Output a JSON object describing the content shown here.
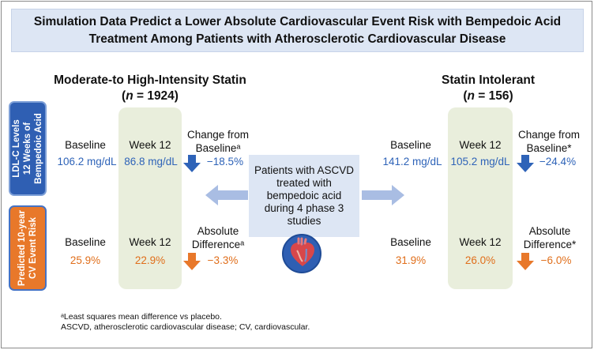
{
  "title": {
    "line1": "Simulation Data Predict a Lower Absolute Cardiovascular Event Risk with Bempedoic Acid",
    "line2": "Treatment Among Patients with Atherosclerotic Cardiovascular Disease"
  },
  "left_group": {
    "title": "Moderate-to High-Intensity Statin",
    "n_prefix": "(",
    "n_label": "n",
    "n_value": " = 1924)"
  },
  "right_group": {
    "title": "Statin Intolerant",
    "n_prefix": "(",
    "n_label": "n",
    "n_value": " = 156)"
  },
  "side_labels": {
    "ldl_line1": "LDL-C Levels",
    "ldl_line2": "12 Weeks of",
    "ldl_line3": "Bempedoic Acid",
    "cv_line1": "Predicted 10-year",
    "cv_line2": "CV Event Risk"
  },
  "labels": {
    "baseline": "Baseline",
    "week12": "Week 12",
    "change_line1": "Change from",
    "change_line2_left": "Baselineᵃ",
    "change_line2_right": "Baseline*",
    "absdiff_line1": "Absolute",
    "absdiff_line2_left": "Differenceᵃ",
    "absdiff_line2_right": "Difference*"
  },
  "left_ldl": {
    "baseline": "106.2 mg/dL",
    "week12": "86.8 mg/dL",
    "change": "−18.5%"
  },
  "left_cv": {
    "baseline": "25.9%",
    "week12": "22.9%",
    "change": "−3.3%"
  },
  "right_ldl": {
    "baseline": "141.2 mg/dL",
    "week12": "105.2 mg/dL",
    "change": "−24.4%"
  },
  "right_cv": {
    "baseline": "31.9%",
    "week12": "26.0%",
    "change": "−6.0%"
  },
  "center": {
    "line1": "Patients with ASCVD",
    "line2": "treated with",
    "line3": "bempedoic acid",
    "line4": "during 4 phase 3",
    "line5": "studies"
  },
  "footnotes": {
    "line1": "ᵃLeast squares mean difference vs placebo.",
    "line2": "ASCVD, atherosclerotic cardiovascular disease; CV, cardiovascular."
  },
  "colors": {
    "blue": "#2e63b8",
    "orange": "#e06e1a",
    "arrow_light": "#a9bde3"
  }
}
